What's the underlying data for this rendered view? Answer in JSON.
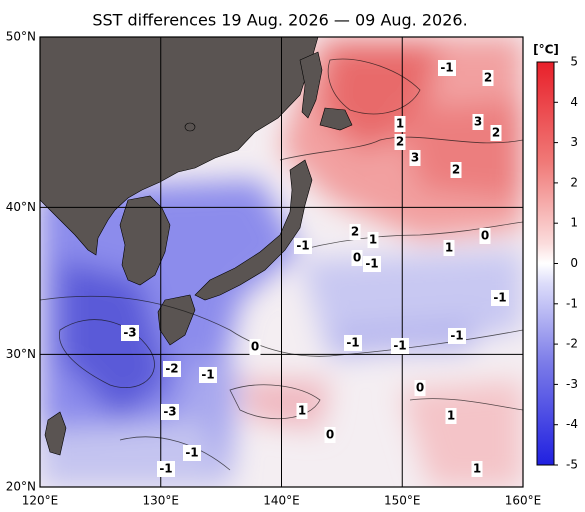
{
  "title": "SST differences 19 Aug. 2026 — 09 Aug. 2026.",
  "map": {
    "lon_range": [
      120,
      160
    ],
    "lat_range": [
      20,
      50
    ],
    "lon_ticks": [
      {
        "value": 120,
        "label": "120°E"
      },
      {
        "value": 130,
        "label": "130°E"
      },
      {
        "value": 140,
        "label": "140°E"
      },
      {
        "value": 150,
        "label": "150°E"
      },
      {
        "value": 160,
        "label": "160°E"
      }
    ],
    "lat_ticks": [
      {
        "value": 20,
        "label": "20°N"
      },
      {
        "value": 30,
        "label": "30°N"
      },
      {
        "value": 40,
        "label": "40°N"
      },
      {
        "value": 50,
        "label": "50°N"
      }
    ]
  },
  "colorbar": {
    "unit": "[°C]",
    "range": [
      -5,
      5
    ],
    "ticks": [
      5,
      4,
      3,
      2,
      1,
      0,
      -1,
      -2,
      -3,
      -4,
      -5
    ]
  },
  "contour_labels": [
    -1,
    2,
    1,
    2,
    3,
    2,
    3,
    2,
    2,
    1,
    -1,
    0,
    -1,
    1,
    0,
    -1,
    -3,
    -1,
    -1,
    -1,
    0,
    -2,
    -1,
    0,
    1,
    1,
    -3,
    0,
    -1,
    -1,
    1
  ]
}
